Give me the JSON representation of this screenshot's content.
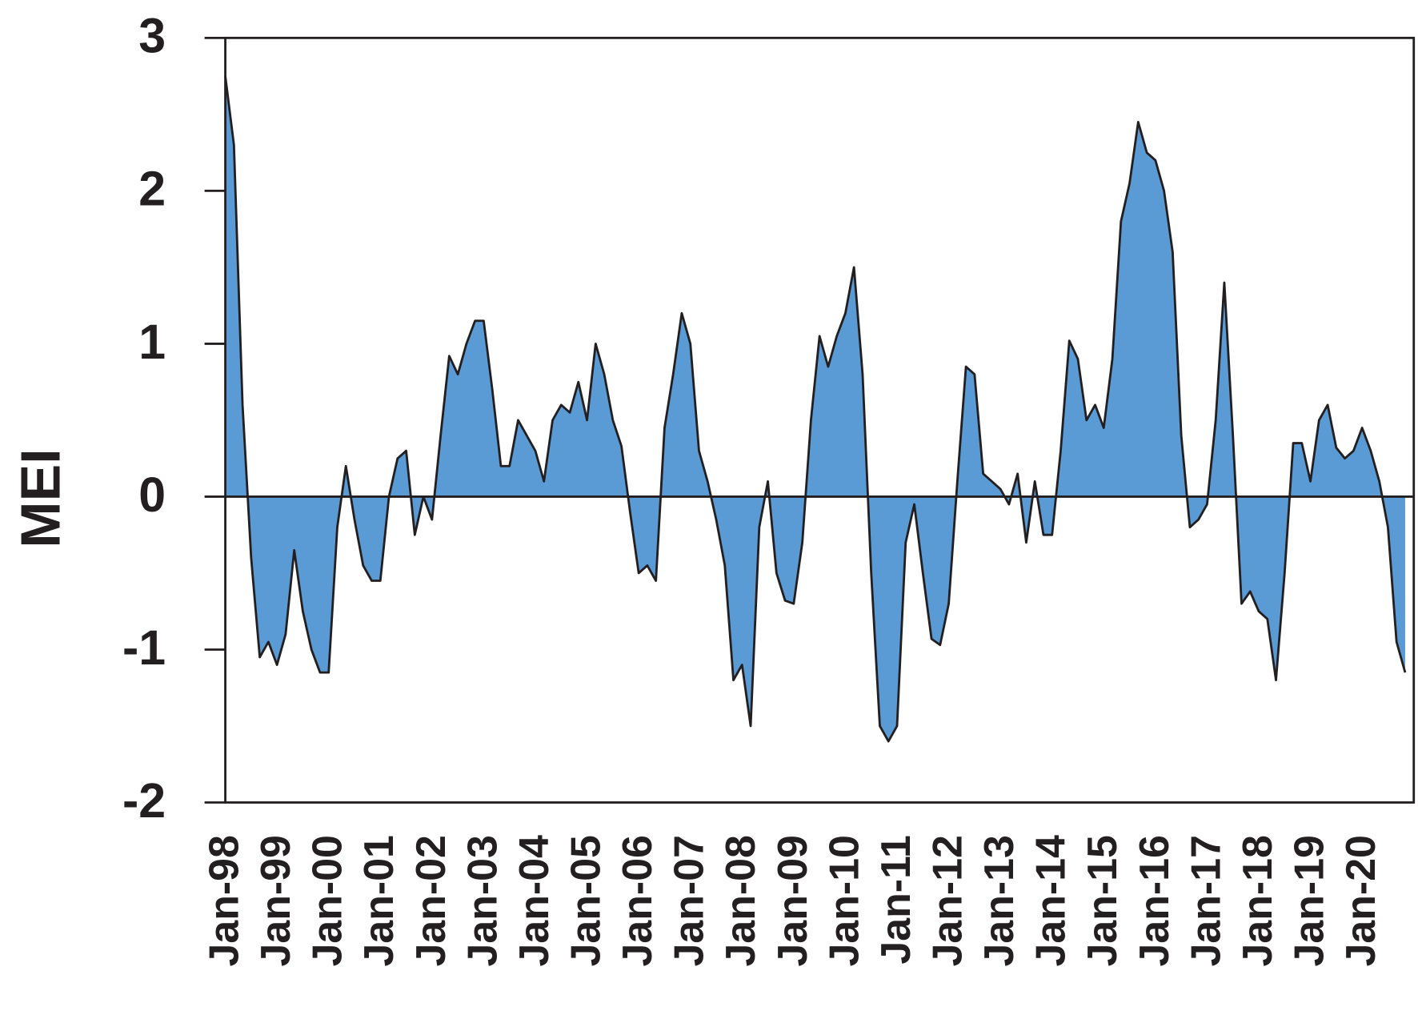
{
  "chart_data": {
    "type": "area",
    "y_label": "MEI",
    "color": "#5b9bd5",
    "ylim": [
      -2,
      3
    ],
    "yticks": [
      -2,
      -1,
      0,
      1,
      2,
      3
    ],
    "categories": [
      "Jan-98",
      null,
      null,
      null,
      null,
      null,
      "Jan-99",
      null,
      null,
      null,
      null,
      null,
      "Jan-00",
      null,
      null,
      null,
      null,
      null,
      "Jan-01",
      null,
      null,
      null,
      null,
      null,
      "Jan-02",
      null,
      null,
      null,
      null,
      null,
      "Jan-03",
      null,
      null,
      null,
      null,
      null,
      "Jan-04",
      null,
      null,
      null,
      null,
      null,
      "Jan-05",
      null,
      null,
      null,
      null,
      null,
      "Jan-06",
      null,
      null,
      null,
      null,
      null,
      "Jan-07",
      null,
      null,
      null,
      null,
      null,
      "Jan-08",
      null,
      null,
      null,
      null,
      null,
      "Jan-09",
      null,
      null,
      null,
      null,
      null,
      "Jan-10",
      null,
      null,
      null,
      null,
      null,
      "Jan-11",
      null,
      null,
      null,
      null,
      null,
      "Jan-12",
      null,
      null,
      null,
      null,
      null,
      "Jan-13",
      null,
      null,
      null,
      null,
      null,
      "Jan-14",
      null,
      null,
      null,
      null,
      null,
      "Jan-15",
      null,
      null,
      null,
      null,
      null,
      "Jan-16",
      null,
      null,
      null,
      null,
      null,
      "Jan-17",
      null,
      null,
      null,
      null,
      null,
      "Jan-18",
      null,
      null,
      null,
      null,
      null,
      "Jan-19",
      null,
      null,
      null,
      null,
      null,
      "Jan-20",
      null,
      null,
      null,
      null,
      null
    ],
    "values": [
      2.75,
      2.3,
      0.6,
      -0.4,
      -1.05,
      -0.95,
      -1.1,
      -0.9,
      -0.35,
      -0.75,
      -1.0,
      -1.15,
      -1.15,
      -0.2,
      0.2,
      -0.15,
      -0.45,
      -0.55,
      -0.55,
      0.0,
      0.25,
      0.3,
      -0.25,
      0.0,
      -0.15,
      0.4,
      0.92,
      0.8,
      1.0,
      1.15,
      1.15,
      0.7,
      0.2,
      0.2,
      0.5,
      0.4,
      0.3,
      0.1,
      0.5,
      0.6,
      0.55,
      0.75,
      0.5,
      1.0,
      0.8,
      0.5,
      0.33,
      -0.1,
      -0.5,
      -0.45,
      -0.55,
      0.45,
      0.8,
      1.2,
      1.0,
      0.3,
      0.1,
      -0.15,
      -0.45,
      -1.2,
      -1.1,
      -1.5,
      -0.2,
      0.1,
      -0.5,
      -0.68,
      -0.7,
      -0.3,
      0.5,
      1.05,
      0.85,
      1.05,
      1.2,
      1.5,
      0.8,
      -0.5,
      -1.5,
      -1.6,
      -1.5,
      -0.3,
      -0.05,
      -0.5,
      -0.93,
      -0.97,
      -0.7,
      0.1,
      0.85,
      0.8,
      0.15,
      0.1,
      0.05,
      -0.05,
      0.15,
      -0.3,
      0.1,
      -0.25,
      -0.25,
      0.3,
      1.02,
      0.9,
      0.5,
      0.6,
      0.45,
      0.9,
      1.8,
      2.05,
      2.45,
      2.25,
      2.2,
      2.0,
      1.6,
      0.4,
      -0.2,
      -0.15,
      -0.05,
      0.5,
      1.4,
      0.4,
      -0.7,
      -0.62,
      -0.75,
      -0.8,
      -1.2,
      -0.5,
      0.35,
      0.35,
      0.1,
      0.5,
      0.6,
      0.32,
      0.25,
      0.3,
      0.45,
      0.3,
      0.1,
      -0.2,
      -0.95,
      -1.15
    ]
  }
}
